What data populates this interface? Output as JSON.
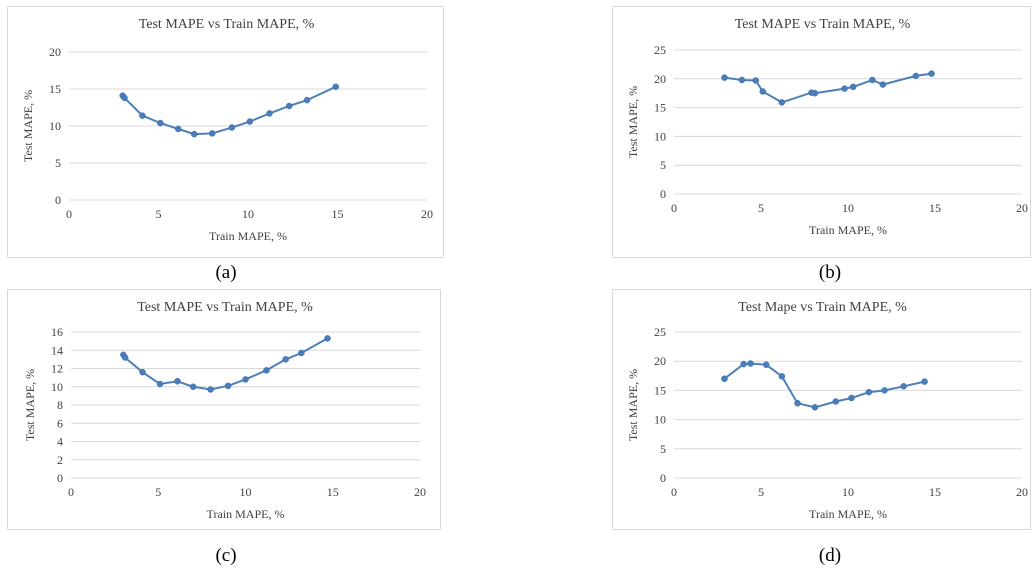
{
  "captions": [
    "(a)",
    "(b)",
    "(c)",
    "(d)"
  ],
  "chart_data": [
    {
      "type": "scatter",
      "title": "Test MAPE vs Train MAPE, %",
      "xlabel": "Train MAPE, %",
      "ylabel": "Test MAPE, %",
      "xlim": [
        0,
        20
      ],
      "ylim": [
        0,
        20
      ],
      "xticks": [
        "0",
        "5",
        "10",
        "15",
        "20"
      ],
      "yticks": [
        "0",
        "5",
        "10",
        "15",
        "20"
      ],
      "grid": true,
      "x": [
        3.0,
        3.1,
        4.1,
        5.1,
        6.1,
        7.0,
        8.0,
        9.1,
        10.1,
        11.2,
        12.3,
        13.3,
        14.9
      ],
      "y": [
        14.1,
        13.8,
        11.4,
        10.4,
        9.6,
        8.9,
        9.0,
        9.8,
        10.6,
        11.7,
        12.7,
        13.5,
        15.3
      ]
    },
    {
      "type": "scatter",
      "title": "Test MAPE vs Train MAPE, %",
      "xlabel": "Train MAPE, %",
      "ylabel": "Test MAPE, %",
      "xlim": [
        0,
        20
      ],
      "ylim": [
        0,
        25
      ],
      "xticks": [
        "0",
        "5",
        "10",
        "15",
        "20"
      ],
      "yticks": [
        "0",
        "5",
        "10",
        "15",
        "20",
        "25"
      ],
      "grid": true,
      "x": [
        2.9,
        3.9,
        4.7,
        5.1,
        6.2,
        7.9,
        8.1,
        9.8,
        10.3,
        11.4,
        12.0,
        13.9,
        14.8
      ],
      "y": [
        20.2,
        19.8,
        19.7,
        17.8,
        15.9,
        17.6,
        17.5,
        18.3,
        18.6,
        19.8,
        19.0,
        20.5,
        20.9
      ]
    },
    {
      "type": "scatter",
      "title": "Test MAPE vs Train MAPE, %",
      "xlabel": "Train MAPE, %",
      "ylabel": "Test MAPE, %",
      "xlim": [
        0,
        20
      ],
      "ylim": [
        0,
        16
      ],
      "xticks": [
        "0",
        "5",
        "10",
        "15",
        "20"
      ],
      "yticks": [
        "0",
        "2",
        "4",
        "6",
        "8",
        "10",
        "12",
        "14",
        "16"
      ],
      "grid": true,
      "x": [
        3.0,
        3.1,
        4.1,
        5.1,
        6.1,
        7.0,
        8.0,
        9.0,
        10.0,
        11.2,
        12.3,
        13.2,
        14.7
      ],
      "y": [
        13.5,
        13.2,
        11.6,
        10.3,
        10.6,
        10.0,
        9.7,
        10.1,
        10.8,
        11.8,
        13.0,
        13.7,
        15.3
      ]
    },
    {
      "type": "scatter",
      "title": "Test Mape vs Train MAPE, %",
      "xlabel": "Train MAPE, %",
      "ylabel": "Test MAPE, %",
      "xlim": [
        0,
        20
      ],
      "ylim": [
        0,
        25
      ],
      "xticks": [
        "0",
        "5",
        "10",
        "15",
        "20"
      ],
      "yticks": [
        "0",
        "5",
        "10",
        "15",
        "20",
        "25"
      ],
      "grid": true,
      "x": [
        2.9,
        4.0,
        4.4,
        5.3,
        6.2,
        7.1,
        8.1,
        9.3,
        10.2,
        11.2,
        12.1,
        13.2,
        14.4
      ],
      "y": [
        17.0,
        19.5,
        19.6,
        19.4,
        17.4,
        12.8,
        12.1,
        13.1,
        13.7,
        14.7,
        15.0,
        15.7,
        16.5
      ]
    }
  ]
}
